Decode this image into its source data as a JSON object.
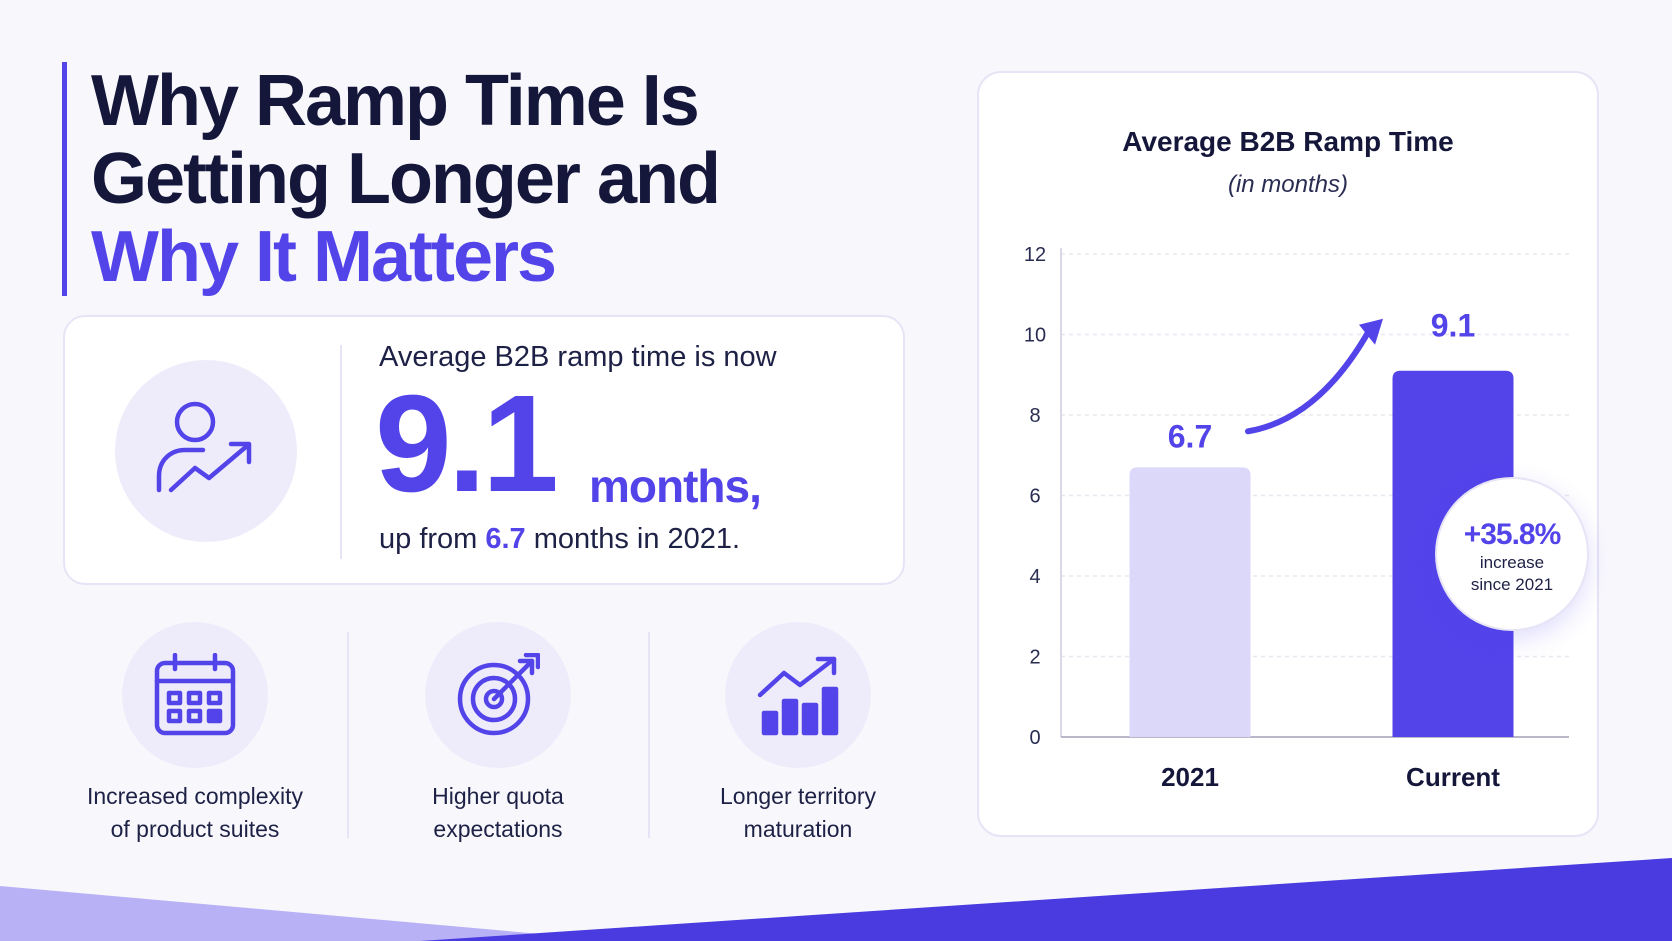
{
  "header": {
    "title_line1": "Why Ramp Time Is",
    "title_line2": "Getting Longer and",
    "title_line3": "Why It Matters"
  },
  "stat": {
    "icon": "person-growth-icon",
    "lead": "Average B2B ramp time is now",
    "value": "9.1",
    "unit": "months,",
    "sub_prefix": "up from ",
    "sub_value": "6.7",
    "sub_suffix": " months in 2021."
  },
  "factors": [
    {
      "icon": "calendar-icon",
      "label": "Increased complexity\nof product suites"
    },
    {
      "icon": "target-icon",
      "label": "Higher quota\nexpectations"
    },
    {
      "icon": "growth-bars-icon",
      "label": "Longer territory\nmaturation"
    }
  ],
  "badge": {
    "value": "+35.8%",
    "text": "increase\nsince 2021"
  },
  "colors": {
    "accent": "#5344ea",
    "bar_light": "#dcd8f9",
    "text_dark": "#14163a"
  },
  "chart_data": {
    "type": "bar",
    "title": "Average B2B Ramp Time",
    "subtitle": "(in months)",
    "categories": [
      "2021",
      "Current"
    ],
    "values": [
      6.7,
      9.1
    ],
    "data_labels": [
      "6.7",
      "9.1"
    ],
    "ylim": [
      0,
      12
    ],
    "yticks": [
      0,
      2,
      4,
      6,
      8,
      10,
      12
    ],
    "grid": true,
    "xlabel": "",
    "ylabel": ""
  }
}
